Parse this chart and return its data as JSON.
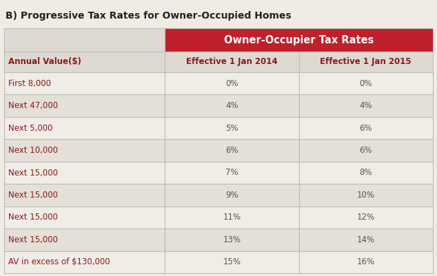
{
  "title": "B) Progressive Tax Rates for Owner-Occupied Homes",
  "header_main": "Owner-Occupier Tax Rates",
  "col_headers": [
    "Annual Value($)",
    "Effective 1 Jan 2014",
    "Effective 1 Jan 2015"
  ],
  "rows": [
    [
      "First 8,000",
      "0%",
      "0%"
    ],
    [
      "Next 47,000",
      "4%",
      "4%"
    ],
    [
      "Next 5,000",
      "5%",
      "6%"
    ],
    [
      "Next 10,000",
      "6%",
      "6%"
    ],
    [
      "Next 15,000",
      "7%",
      "8%"
    ],
    [
      "Next 15,000",
      "9%",
      "10%"
    ],
    [
      "Next 15,000",
      "11%",
      "12%"
    ],
    [
      "Next 15,000",
      "13%",
      "14%"
    ],
    [
      "AV in excess of $130,000",
      "15%",
      "16%"
    ]
  ],
  "header_red_bg": "#c0202a",
  "header_red_text": "#ffffff",
  "subheader_bg": "#dedad2",
  "subheader_text": "#8b1a1a",
  "row_bg_odd": "#f0ede6",
  "row_bg_even": "#e4e0d8",
  "col1_text_color": "#8b1a1a",
  "data_text_color": "#555555",
  "title_color": "#222222",
  "border_color": "#bbbbbb",
  "fig_bg": "#f0ece4"
}
